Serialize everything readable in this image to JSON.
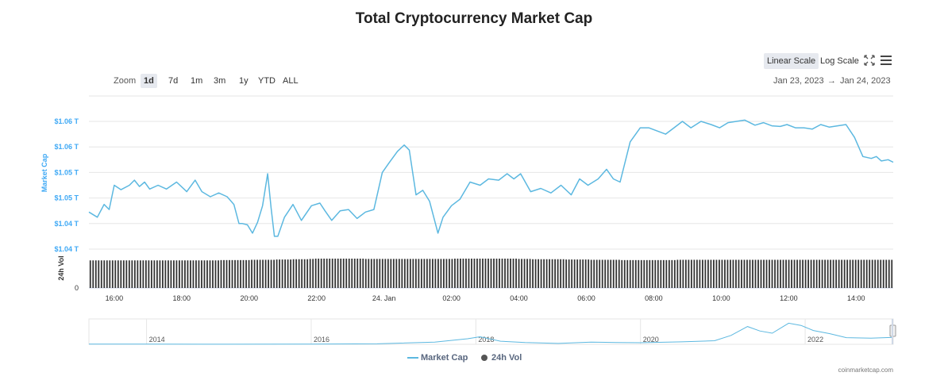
{
  "header": {
    "title": "Total Cryptocurrency Market Cap"
  },
  "toolbar": {
    "zoom_label": "Zoom",
    "zoom_buttons": [
      "1d",
      "7d",
      "1m",
      "3m",
      "1y",
      "YTD",
      "ALL"
    ],
    "active_zoom": "1d",
    "linear_scale_label": "Linear Scale",
    "log_scale_label": "Log Scale",
    "fullscreen_icon": "fullscreen-icon",
    "menu_icon": "hamburger-menu-icon",
    "date_from": "Jan 23, 2023",
    "date_arrow": "→",
    "date_to": "Jan 24, 2023"
  },
  "chart_data": {
    "type": "line",
    "title": "Total Cryptocurrency Market Cap",
    "ylabel": "Market Cap",
    "volume_label": "24h Vol",
    "volume_zero_label": "0",
    "y_tick_labels": [
      "$1.06 T",
      "$1.06 T",
      "$1.05 T",
      "$1.05 T",
      "$1.04 T",
      "$1.04 T"
    ],
    "x_tick_labels": [
      "16:00",
      "18:00",
      "20:00",
      "22:00",
      "24. Jan",
      "02:00",
      "04:00",
      "06:00",
      "08:00",
      "10:00",
      "12:00",
      "14:00"
    ],
    "x_range_hours": [
      15.25,
      39.1
    ],
    "ylim": [
      1.04,
      1.06
    ],
    "grid": true,
    "legend": "bottom",
    "colors": {
      "line": "#5cb8e0",
      "volume": "#333333",
      "axis_text": "#3fa9f5"
    },
    "series": [
      {
        "name": "Market Cap",
        "x": [
          15.25,
          15.5,
          15.7,
          15.85,
          16.0,
          16.2,
          16.45,
          16.6,
          16.75,
          16.9,
          17.05,
          17.3,
          17.55,
          17.85,
          18.15,
          18.4,
          18.6,
          18.85,
          19.1,
          19.35,
          19.55,
          19.7,
          19.8,
          19.95,
          20.1,
          20.25,
          20.4,
          20.55,
          20.65,
          20.75,
          20.85,
          21.05,
          21.3,
          21.55,
          21.85,
          22.1,
          22.25,
          22.45,
          22.7,
          22.95,
          23.2,
          23.45,
          23.7,
          23.95,
          24.15,
          24.4,
          24.6,
          24.75,
          24.95,
          25.15,
          25.35,
          25.6,
          25.75,
          26.0,
          26.25,
          26.55,
          26.85,
          27.1,
          27.4,
          27.65,
          27.85,
          28.05,
          28.35,
          28.65,
          28.95,
          29.25,
          29.55,
          29.8,
          30.05,
          30.35,
          30.6,
          30.8,
          31.0,
          31.3,
          31.6,
          31.85,
          32.1,
          32.35,
          32.6,
          32.85,
          33.1,
          33.4,
          33.7,
          33.95,
          34.2,
          34.45,
          34.7,
          35.0,
          35.25,
          35.5,
          35.75,
          35.95,
          36.2,
          36.45,
          36.7,
          36.95,
          37.2,
          37.45,
          37.7,
          37.95,
          38.2,
          38.45,
          38.6,
          38.75,
          38.95,
          39.1
        ],
        "values": [
          1.0458,
          1.045,
          1.047,
          1.0462,
          1.05,
          1.0493,
          1.05,
          1.0508,
          1.0498,
          1.0505,
          1.0494,
          1.05,
          1.0494,
          1.0505,
          1.049,
          1.0508,
          1.049,
          1.0482,
          1.0488,
          1.0482,
          1.047,
          1.044,
          1.044,
          1.0438,
          1.0425,
          1.0442,
          1.0468,
          1.0518,
          1.0465,
          1.042,
          1.042,
          1.045,
          1.047,
          1.0445,
          1.0468,
          1.0472,
          1.046,
          1.0445,
          1.046,
          1.0462,
          1.0448,
          1.0458,
          1.0462,
          1.052,
          1.0535,
          1.0553,
          1.0563,
          1.0555,
          1.0485,
          1.0492,
          1.0475,
          1.0425,
          1.045,
          1.0468,
          1.0478,
          1.0505,
          1.05,
          1.051,
          1.0508,
          1.0518,
          1.051,
          1.0518,
          1.049,
          1.0495,
          1.0488,
          1.05,
          1.0485,
          1.051,
          1.05,
          1.051,
          1.0525,
          1.051,
          1.0505,
          1.0568,
          1.059,
          1.059,
          1.0585,
          1.058,
          1.059,
          1.06,
          1.059,
          1.06,
          1.0595,
          1.059,
          1.0598,
          1.06,
          1.0602,
          1.0594,
          1.0598,
          1.0593,
          1.0592,
          1.0595,
          1.059,
          1.059,
          1.0588,
          1.0595,
          1.0591,
          1.0593,
          1.0595,
          1.0575,
          1.0545,
          1.0542,
          1.0545,
          1.0538,
          1.054,
          1.0536
        ]
      },
      {
        "name": "24h Vol",
        "values_relative": [
          0.94,
          0.94,
          0.94,
          0.94,
          0.94,
          0.94,
          0.94,
          0.94,
          0.94,
          0.94,
          0.94,
          0.94,
          0.94,
          0.94,
          0.94,
          0.94,
          0.95,
          0.95,
          0.95,
          0.95,
          0.96,
          0.96,
          0.96,
          0.97,
          0.97,
          0.98,
          0.98,
          0.99,
          1.0,
          1.0,
          1.0,
          1.0,
          1.0,
          1.0,
          0.99,
          0.99,
          0.99,
          0.99,
          0.99,
          0.99,
          0.99,
          0.99,
          0.99,
          0.99,
          0.99,
          1.0,
          1.0,
          1.0,
          1.0,
          1.0,
          1.0,
          1.0,
          1.0,
          0.99,
          0.99,
          0.98,
          0.98,
          0.98,
          0.98,
          0.97,
          0.97,
          0.97,
          0.96,
          0.96,
          0.96,
          0.96,
          0.95,
          0.95,
          0.95,
          0.95,
          0.95,
          0.95,
          0.95,
          0.96,
          0.96,
          0.96,
          0.96,
          0.96,
          0.96,
          0.96,
          0.96,
          0.96,
          0.96,
          0.96,
          0.96,
          0.96,
          0.96,
          0.96,
          0.96,
          0.96,
          0.96,
          0.96,
          0.96,
          0.96,
          0.96,
          0.96,
          0.96,
          0.96,
          0.96,
          0.96
        ]
      }
    ],
    "navigator": {
      "x_labels": [
        "2014",
        "2016",
        "2018",
        "2020",
        "2022"
      ],
      "year_range": [
        2013.3,
        2023.07
      ],
      "history_years": [
        2013.3,
        2014.0,
        2015.0,
        2016.0,
        2016.8,
        2017.5,
        2017.9,
        2018.05,
        2018.3,
        2018.6,
        2019.0,
        2019.4,
        2019.7,
        2020.0,
        2020.5,
        2020.9,
        2021.1,
        2021.3,
        2021.45,
        2021.6,
        2021.8,
        2021.95,
        2022.1,
        2022.3,
        2022.5,
        2022.8,
        2023.07
      ],
      "history_values": [
        0.01,
        0.01,
        0.005,
        0.01,
        0.02,
        0.1,
        0.25,
        0.34,
        0.14,
        0.08,
        0.04,
        0.1,
        0.08,
        0.07,
        0.11,
        0.16,
        0.4,
        0.8,
        0.6,
        0.5,
        0.95,
        0.85,
        0.62,
        0.48,
        0.3,
        0.28,
        0.31
      ]
    }
  },
  "legend": {
    "market_cap_label": "Market Cap",
    "volume_label": "24h Vol"
  },
  "footer": {
    "credit": "coinmarketcap.com"
  }
}
